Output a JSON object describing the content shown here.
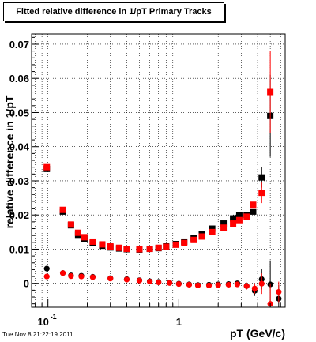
{
  "title": "Fitted relative difference in 1/pT  Primary Tracks",
  "timestamp": "Tue Nov  8 21:22:19 2011",
  "chart_data": {
    "type": "scatter",
    "xlabel": "pT (GeV/c)",
    "ylabel": "relative difference in 1/pT",
    "xscale": "log",
    "xlim": [
      0.075,
      6.5
    ],
    "ylim": [
      -0.007,
      0.073
    ],
    "xticks": [
      {
        "v": 0.1,
        "base": "10",
        "exp": "-1"
      },
      {
        "v": 1,
        "base": "1",
        "exp": ""
      }
    ],
    "yticks": [
      {
        "v": 0,
        "label": "0"
      },
      {
        "v": 0.01,
        "label": "0.01"
      },
      {
        "v": 0.02,
        "label": "0.02"
      },
      {
        "v": 0.03,
        "label": "0.03"
      },
      {
        "v": 0.04,
        "label": "0.04"
      },
      {
        "v": 0.05,
        "label": "0.05"
      },
      {
        "v": 0.06,
        "label": "0.06"
      },
      {
        "v": 0.07,
        "label": "0.07"
      }
    ],
    "grid": true,
    "series": [
      {
        "marker": "square",
        "color": "#000000",
        "points": [
          [
            0.098,
            0.0335,
            0.006,
            0.0003
          ],
          [
            0.13,
            0.021,
            0.006,
            0.0003
          ],
          [
            0.15,
            0.017,
            0.005,
            0.0003
          ],
          [
            0.17,
            0.0142,
            0.005,
            0.0003
          ],
          [
            0.19,
            0.013,
            0.005,
            0.0003
          ],
          [
            0.22,
            0.0118,
            0.004,
            0.0003
          ],
          [
            0.26,
            0.011,
            0.004,
            0.0003
          ],
          [
            0.3,
            0.0105,
            0.004,
            0.0003
          ],
          [
            0.35,
            0.0102,
            0.004,
            0.0003
          ],
          [
            0.4,
            0.01,
            0.004,
            0.0003
          ],
          [
            0.5,
            0.0099,
            0.004,
            0.0003
          ],
          [
            0.6,
            0.0101,
            0.004,
            0.0003
          ],
          [
            0.7,
            0.0103,
            0.004,
            0.0003
          ],
          [
            0.8,
            0.0108,
            0.004,
            0.0003
          ],
          [
            0.95,
            0.0115,
            0.004,
            0.0003
          ],
          [
            1.1,
            0.0122,
            0.004,
            0.0003
          ],
          [
            1.3,
            0.0132,
            0.004,
            0.0003
          ],
          [
            1.5,
            0.0145,
            0.004,
            0.0003
          ],
          [
            1.8,
            0.016,
            0.004,
            0.0003
          ],
          [
            2.2,
            0.0175,
            0.004,
            0.0003
          ],
          [
            2.6,
            0.019,
            0.004,
            0.0003
          ],
          [
            2.9,
            0.02,
            0.004,
            0.0004
          ],
          [
            3.3,
            0.02,
            0.004,
            0.0005
          ],
          [
            3.7,
            0.021,
            0.004,
            0.0008
          ],
          [
            4.3,
            0.031,
            0.005,
            0.003
          ],
          [
            5.0,
            0.049,
            0.005,
            0.012
          ]
        ]
      },
      {
        "marker": "square",
        "color": "#ff0000",
        "points": [
          [
            0.098,
            0.034,
            0.006,
            0.0003
          ],
          [
            0.13,
            0.0215,
            0.006,
            0.0003
          ],
          [
            0.15,
            0.0172,
            0.005,
            0.0003
          ],
          [
            0.17,
            0.0148,
            0.005,
            0.0003
          ],
          [
            0.19,
            0.0135,
            0.005,
            0.0003
          ],
          [
            0.22,
            0.0122,
            0.004,
            0.0003
          ],
          [
            0.26,
            0.0114,
            0.004,
            0.0003
          ],
          [
            0.3,
            0.0108,
            0.004,
            0.0003
          ],
          [
            0.35,
            0.0104,
            0.004,
            0.0003
          ],
          [
            0.4,
            0.0101,
            0.004,
            0.0003
          ],
          [
            0.5,
            0.01,
            0.004,
            0.0003
          ],
          [
            0.6,
            0.0101,
            0.004,
            0.0003
          ],
          [
            0.7,
            0.0104,
            0.004,
            0.0003
          ],
          [
            0.8,
            0.0107,
            0.004,
            0.0003
          ],
          [
            0.95,
            0.0113,
            0.004,
            0.0003
          ],
          [
            1.1,
            0.0118,
            0.004,
            0.0003
          ],
          [
            1.3,
            0.0127,
            0.004,
            0.0003
          ],
          [
            1.5,
            0.0137,
            0.004,
            0.0003
          ],
          [
            1.8,
            0.015,
            0.004,
            0.0003
          ],
          [
            2.2,
            0.0163,
            0.004,
            0.0003
          ],
          [
            2.6,
            0.0175,
            0.004,
            0.0003
          ],
          [
            2.9,
            0.0185,
            0.004,
            0.0004
          ],
          [
            3.3,
            0.0195,
            0.004,
            0.0005
          ],
          [
            3.7,
            0.023,
            0.004,
            0.0008
          ],
          [
            4.3,
            0.0265,
            0.005,
            0.003
          ],
          [
            5.0,
            0.056,
            0.005,
            0.012
          ]
        ]
      },
      {
        "marker": "circle",
        "color": "#000000",
        "points": [
          [
            0.098,
            0.0043,
            0.006,
            0.0003
          ],
          [
            0.13,
            0.003,
            0.006,
            0.0003
          ],
          [
            0.15,
            0.0023,
            0.005,
            0.0003
          ],
          [
            0.18,
            0.0022,
            0.005,
            0.0003
          ],
          [
            0.22,
            0.0019,
            0.004,
            0.0003
          ],
          [
            0.3,
            0.0015,
            0.004,
            0.0003
          ],
          [
            0.4,
            0.0012,
            0.004,
            0.0003
          ],
          [
            0.5,
            0.0009,
            0.004,
            0.0003
          ],
          [
            0.6,
            0.0006,
            0.004,
            0.0003
          ],
          [
            0.7,
            0.0004,
            0.004,
            0.0003
          ],
          [
            0.85,
            0.0002,
            0.004,
            0.0003
          ],
          [
            1.0,
            -0.0001,
            0.004,
            0.0003
          ],
          [
            1.2,
            -0.0003,
            0.004,
            0.0003
          ],
          [
            1.4,
            -0.0005,
            0.004,
            0.0003
          ],
          [
            1.7,
            -0.0004,
            0.004,
            0.0003
          ],
          [
            2.0,
            -0.0003,
            0.004,
            0.0004
          ],
          [
            2.4,
            -0.0002,
            0.004,
            0.0005
          ],
          [
            2.8,
            0.0,
            0.004,
            0.0006
          ],
          [
            3.3,
            -0.0008,
            0.004,
            0.001
          ],
          [
            3.8,
            -0.0022,
            0.004,
            0.0015
          ],
          [
            4.3,
            0.0012,
            0.005,
            0.003
          ],
          [
            5.0,
            -0.0003,
            0.005,
            0.007
          ],
          [
            5.8,
            -0.0045,
            0.005,
            0.004
          ]
        ]
      },
      {
        "marker": "circle",
        "color": "#ff0000",
        "points": [
          [
            0.098,
            0.002,
            0.006,
            0.0003
          ],
          [
            0.13,
            0.003,
            0.006,
            0.0003
          ],
          [
            0.15,
            0.0021,
            0.005,
            0.0003
          ],
          [
            0.18,
            0.002,
            0.005,
            0.0003
          ],
          [
            0.22,
            0.0018,
            0.004,
            0.0003
          ],
          [
            0.3,
            0.0014,
            0.004,
            0.0003
          ],
          [
            0.4,
            0.0011,
            0.004,
            0.0003
          ],
          [
            0.5,
            0.0008,
            0.004,
            0.0003
          ],
          [
            0.6,
            0.0005,
            0.004,
            0.0003
          ],
          [
            0.7,
            0.0003,
            0.004,
            0.0003
          ],
          [
            0.85,
            0.0001,
            0.004,
            0.0003
          ],
          [
            1.0,
            -0.0002,
            0.004,
            0.0003
          ],
          [
            1.2,
            -0.0004,
            0.004,
            0.0003
          ],
          [
            1.4,
            -0.0006,
            0.004,
            0.0003
          ],
          [
            1.7,
            -0.0006,
            0.004,
            0.0003
          ],
          [
            2.0,
            -0.0005,
            0.004,
            0.0004
          ],
          [
            2.4,
            -0.0004,
            0.004,
            0.0005
          ],
          [
            2.8,
            -0.0003,
            0.004,
            0.0006
          ],
          [
            3.3,
            -0.0008,
            0.004,
            0.001
          ],
          [
            3.8,
            -0.0015,
            0.004,
            0.0015
          ],
          [
            4.3,
            -0.0001,
            0.005,
            0.003
          ],
          [
            5.0,
            -0.006,
            0.005,
            0.006
          ],
          [
            5.8,
            -0.0025,
            0.005,
            0.003
          ]
        ]
      }
    ]
  }
}
